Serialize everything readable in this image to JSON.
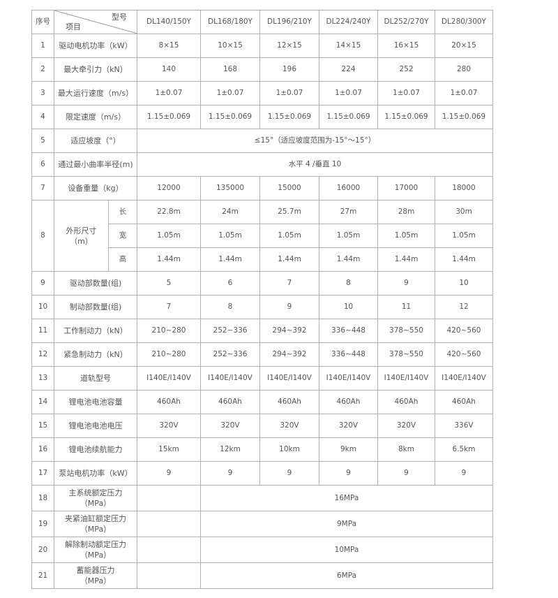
{
  "header": {
    "index": "序号",
    "model_label": "型号",
    "item_label": "项目",
    "models": [
      "DL140/150Y",
      "DL168/180Y",
      "DL196/210Y",
      "DL224/240Y",
      "DL252/270Y",
      "DL280/300Y"
    ]
  },
  "rows": [
    {
      "no": "1",
      "item": "驱动电机功率（kW）",
      "values": [
        "8×15",
        "10×15",
        "12×15",
        "14×15",
        "16×15",
        "20×15"
      ]
    },
    {
      "no": "2",
      "item": "最大牵引力（kN）",
      "values": [
        "140",
        "168",
        "196",
        "224",
        "252",
        "280"
      ]
    },
    {
      "no": "3",
      "item": "最大运行速度（m/s）",
      "values": [
        "1±0.07",
        "1±0.07",
        "1±0.07",
        "1±0.07",
        "1±0.07",
        "1±0.07"
      ]
    },
    {
      "no": "4",
      "item": "限定速度（m/s）",
      "values": [
        "1.15±0.069",
        "1.15±0.069",
        "1.15±0.069",
        "1.15±0.069",
        "1.15±0.069",
        "1.15±0.069"
      ]
    },
    {
      "no": "5",
      "item": "适应坡度（°）",
      "merged": "≤15°（适应坡度范围为-15°～15°）"
    },
    {
      "no": "6",
      "item": "通过最小曲率半径(m)",
      "merged": "水平 4 /垂直 10"
    },
    {
      "no": "7",
      "item": "设备重量（kg）",
      "values": [
        "12000",
        "135000",
        "15000",
        "16000",
        "17000",
        "18000"
      ]
    }
  ],
  "dimensions": {
    "no": "8",
    "item": "外形尺寸",
    "unit": "（m）",
    "sub": [
      {
        "label": "长",
        "values": [
          "22.8m",
          "24m",
          "25.7m",
          "27m",
          "28m",
          "30m"
        ]
      },
      {
        "label": "宽",
        "values": [
          "1.05m",
          "1.05m",
          "1.05m",
          "1.05m",
          "1.05m",
          "1.05m"
        ]
      },
      {
        "label": "高",
        "values": [
          "1.44m",
          "1.44m",
          "1.44m",
          "1.44m",
          "1.44m",
          "1.44m"
        ]
      }
    ]
  },
  "rows2": [
    {
      "no": "9",
      "item": "驱动部数量(组)",
      "values": [
        "5",
        "6",
        "7",
        "8",
        "9",
        "10"
      ]
    },
    {
      "no": "10",
      "item": "制动部数量(组)",
      "values": [
        "7",
        "8",
        "9",
        "10",
        "11",
        "12"
      ]
    },
    {
      "no": "11",
      "item": "工作制动力（kN）",
      "values": [
        "210~280",
        "252~336",
        "294~392",
        "336~448",
        "378~550",
        "420~560"
      ]
    },
    {
      "no": "12",
      "item": "紧急制动力（kN）",
      "values": [
        "210~280",
        "252~336",
        "294~392",
        "336~448",
        "378~550",
        "420~560"
      ]
    },
    {
      "no": "13",
      "item": "道轨型号",
      "values": [
        "I140E/I140V",
        "I140E/I140V",
        "I140E/I140V",
        "I140E/I140V",
        "I140E/I140V",
        "I140E/I140V"
      ]
    },
    {
      "no": "14",
      "item": "锂电池电池容量",
      "values": [
        "460Ah",
        "460Ah",
        "460Ah",
        "460Ah",
        "460Ah",
        "460Ah"
      ]
    },
    {
      "no": "15",
      "item": "锂电池电池电压",
      "values": [
        "320V",
        "320V",
        "320V",
        "320V",
        "320V",
        "336V"
      ]
    },
    {
      "no": "16",
      "item": "锂电池续航能力",
      "values": [
        "15km",
        "12km",
        "10km",
        "9km",
        "8km",
        "6.5km"
      ]
    },
    {
      "no": "17",
      "item": "泵站电机功率（kW）",
      "values": [
        "9",
        "9",
        "9",
        "9",
        "9",
        "9"
      ]
    }
  ],
  "rows3": [
    {
      "no": "18",
      "item": "主系统额定压力",
      "unit": "（MPa）",
      "merged": "16MPa"
    },
    {
      "no": "19",
      "item": "夹紧油缸额定压力",
      "unit": "（MPa）",
      "merged": "9MPa"
    },
    {
      "no": "20",
      "item": "解除制动额定压力",
      "unit": "（MPa）",
      "merged": "10MPa"
    },
    {
      "no": "21",
      "item": "蓄能器压力",
      "unit": "（MPa）",
      "merged": "6MPa"
    }
  ]
}
